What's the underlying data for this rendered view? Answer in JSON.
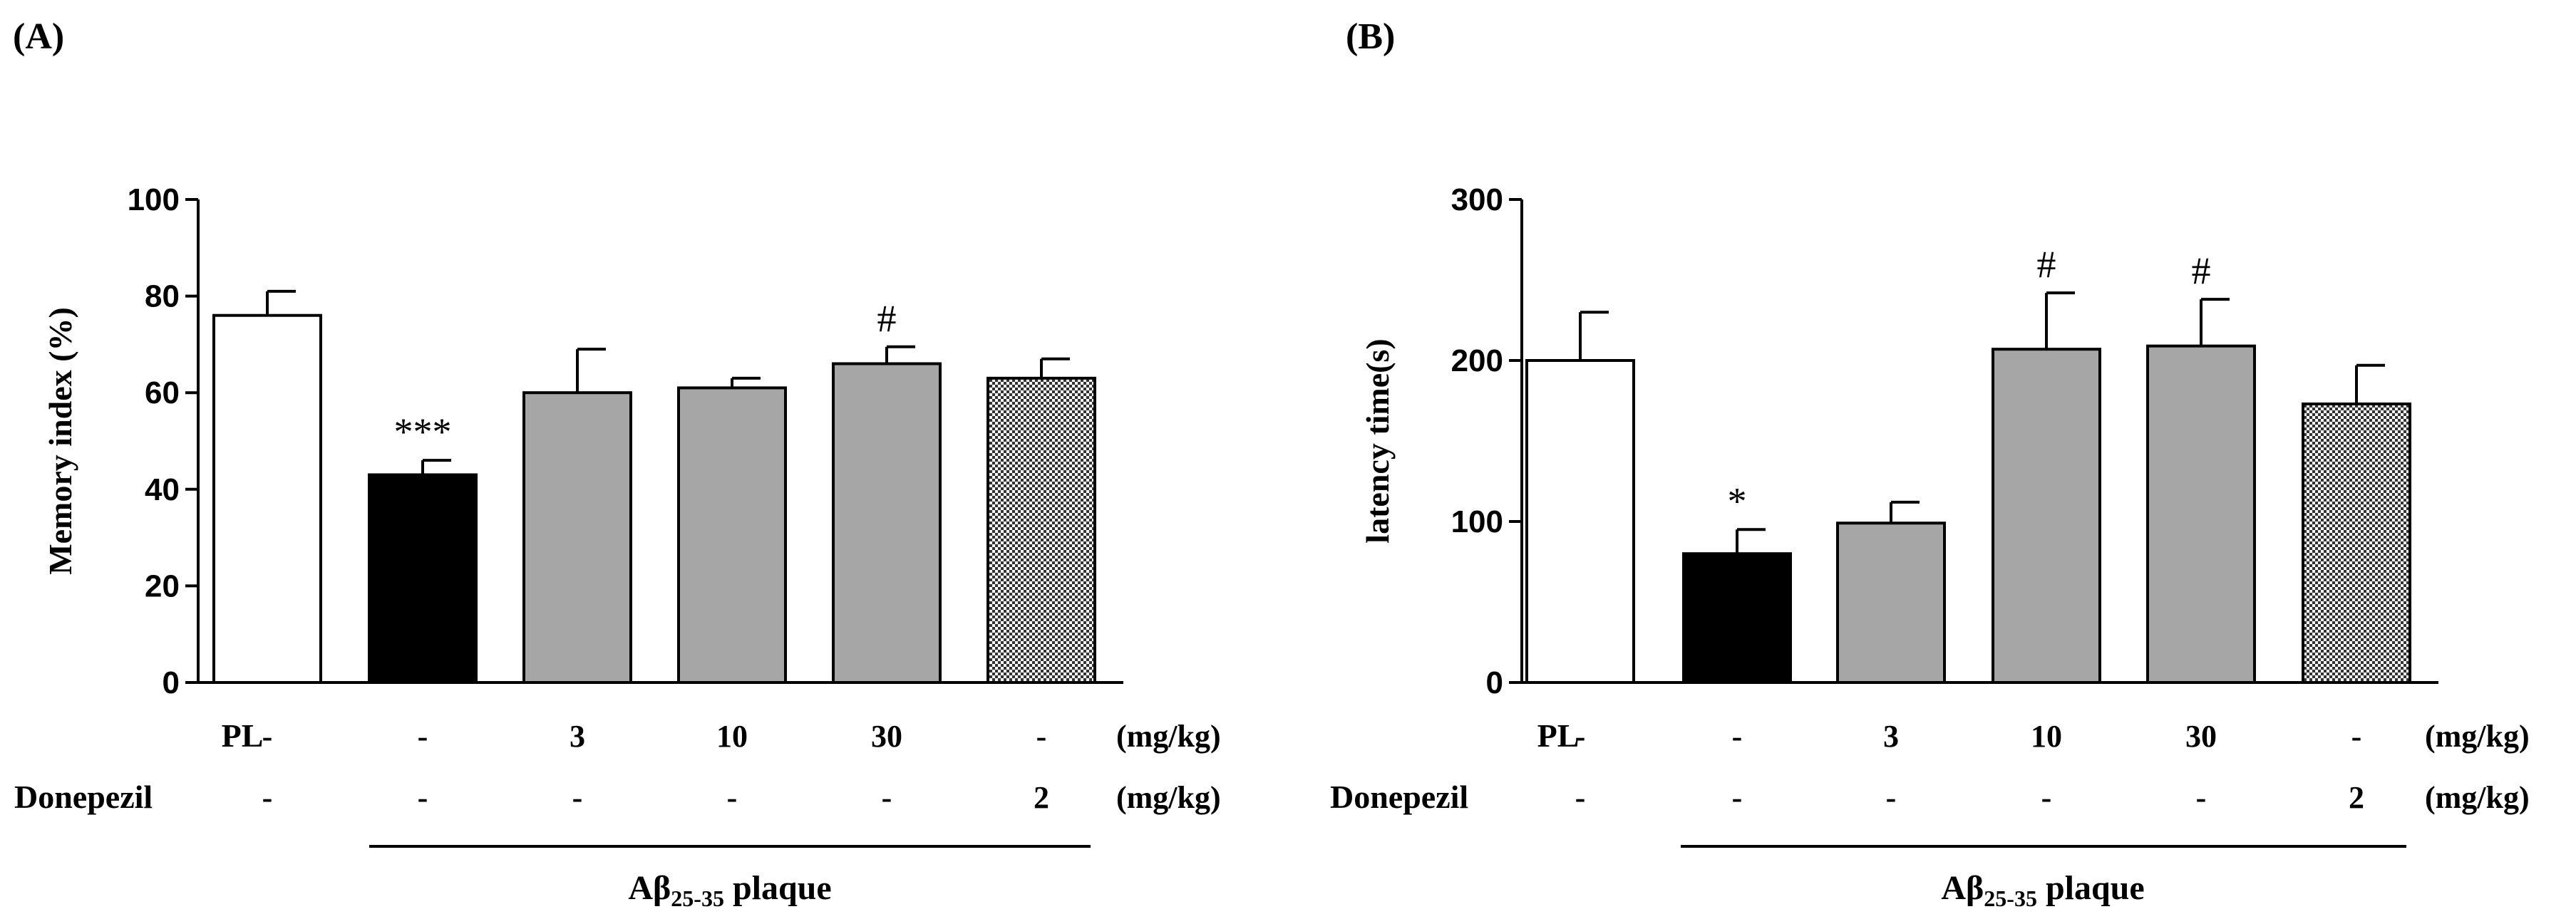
{
  "chart_data": [
    {
      "panel": "(A)",
      "type": "bar",
      "ylabel": "Memory index (%)",
      "ylim": [
        0,
        100
      ],
      "yticks": [
        "0",
        "20",
        "40",
        "60",
        "80",
        "100"
      ],
      "values": [
        76,
        43,
        60,
        61,
        66,
        63
      ],
      "errors": [
        5,
        3,
        9,
        2,
        3.5,
        4
      ],
      "fills": [
        "white",
        "black",
        "gray",
        "gray",
        "gray",
        "checker"
      ],
      "annotations": [
        "",
        "***",
        "",
        "",
        "#",
        ""
      ],
      "rows": [
        {
          "label": "PL",
          "values": [
            "-",
            "-",
            "3",
            "10",
            "30",
            "-"
          ],
          "unit": "(mg/kg)"
        },
        {
          "label": "Donepezil",
          "values": [
            "-",
            "-",
            "-",
            "-",
            "-",
            "2"
          ],
          "unit": "(mg/kg)"
        }
      ],
      "group": {
        "main": "Aβ",
        "sub": "25-35",
        "suffix": " plaque"
      }
    },
    {
      "panel": "(B)",
      "type": "bar",
      "ylabel": "latency time(s)",
      "ylim": [
        0,
        300
      ],
      "yticks": [
        "0",
        "100",
        "200",
        "300"
      ],
      "values": [
        200,
        80,
        99,
        207,
        209,
        173
      ],
      "errors": [
        30,
        15,
        13,
        35,
        29,
        24
      ],
      "fills": [
        "white",
        "black",
        "gray",
        "gray",
        "gray",
        "checker"
      ],
      "annotations": [
        "",
        "*",
        "",
        "#",
        "#",
        ""
      ],
      "rows": [
        {
          "label": "PL",
          "values": [
            "-",
            "-",
            "3",
            "10",
            "30",
            "-"
          ],
          "unit": "(mg/kg)"
        },
        {
          "label": "Donepezil",
          "values": [
            "-",
            "-",
            "-",
            "-",
            "-",
            "2"
          ],
          "unit": "(mg/kg)"
        }
      ],
      "group": {
        "main": "Aβ",
        "sub": "25-35",
        "suffix": " plaque"
      }
    }
  ],
  "colors": {
    "gray": "#a6a6a6",
    "black": "#000000",
    "white": "#ffffff"
  }
}
